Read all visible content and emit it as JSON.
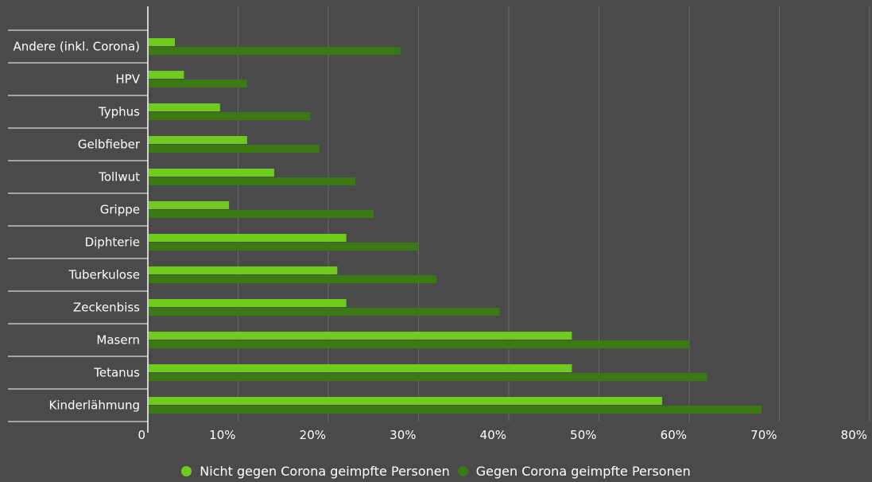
{
  "colors": {
    "background": "#4a4a4a",
    "series_light": "#6fcc1e",
    "series_dark": "#3b7a12",
    "gridline": "#6a6a6a",
    "text": "#ffffff"
  },
  "chart_data": {
    "type": "bar",
    "orientation": "horizontal",
    "categories": [
      "Andere (inkl. Corona)",
      "HPV",
      "Typhus",
      "Gelbfieber",
      "Tollwut",
      "Grippe",
      "Diphterie",
      "Tuberkulose",
      "Zeckenbiss",
      "Masern",
      "Tetanus",
      "Kinderlähmung"
    ],
    "series": [
      {
        "name": "Nicht gegen Corona geimpfte Personen",
        "color": "#6fcc1e",
        "values": [
          3,
          4,
          8,
          11,
          14,
          9,
          22,
          21,
          22,
          47,
          47,
          57
        ]
      },
      {
        "name": "Gegen Corona geimpfte Personen",
        "color": "#3b7a12",
        "values": [
          28,
          11,
          18,
          19,
          23,
          25,
          30,
          32,
          39,
          60,
          62,
          68
        ]
      }
    ],
    "xlim": [
      0,
      80
    ],
    "x_ticks": [
      "0",
      "10%",
      "20%",
      "30%",
      "40%",
      "50%",
      "60%",
      "70%",
      "80%"
    ],
    "grid": true,
    "legend_position": "bottom"
  }
}
